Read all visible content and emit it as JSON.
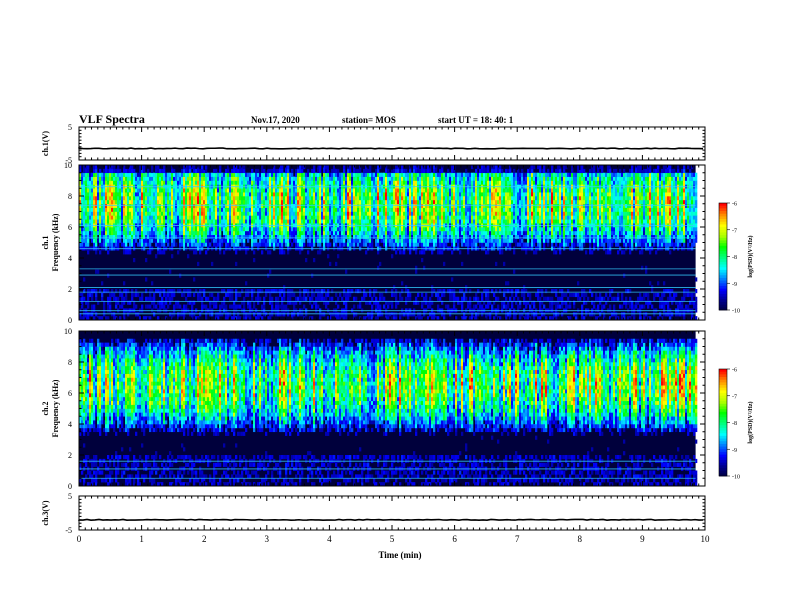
{
  "header": {
    "title": "VLF Spectra",
    "date": "Nov.17, 2020",
    "station": "station= MOS",
    "start": "start  UT =   18: 40: 1"
  },
  "chart_data": [
    {
      "type": "line",
      "name": "ch1-waveform",
      "ylabel": "ch.1(V)",
      "ylim": [
        -5,
        5
      ],
      "yticks": [
        5,
        -5
      ],
      "xlim": [
        0,
        10
      ],
      "series": [
        {
          "values_constant": -1.5
        }
      ]
    },
    {
      "type": "heatmap",
      "name": "ch1-spectrogram",
      "ylabel": "ch.1\nFrequency (kHz)",
      "ylim": [
        0,
        10
      ],
      "yticks": [
        0,
        2,
        4,
        6,
        8,
        10
      ],
      "xlim": [
        0,
        10
      ],
      "data_end_min": 9.85,
      "intense_band_khz": [
        6,
        9
      ],
      "colorbar": {
        "label": "log(PSD)(V²/Hz)",
        "range": [
          -10,
          -6
        ],
        "ticks": [
          -6,
          -7,
          -8,
          -9,
          -10
        ]
      }
    },
    {
      "type": "heatmap",
      "name": "ch2-spectrogram",
      "ylabel": "ch.2\nFrequency (kHz)",
      "ylim": [
        0,
        10
      ],
      "yticks": [
        0,
        2,
        4,
        6,
        8,
        10
      ],
      "xlim": [
        0,
        10
      ],
      "data_end_min": 9.85,
      "intense_band_khz": [
        5,
        8
      ],
      "colorbar": {
        "label": "log(PSD)(V²/Hz)",
        "range": [
          -10,
          -6
        ],
        "ticks": [
          -6,
          -7,
          -8,
          -9,
          -10
        ]
      }
    },
    {
      "type": "line",
      "name": "ch3-waveform",
      "ylabel": "ch.3(V)",
      "ylim": [
        -5,
        5
      ],
      "yticks": [
        5,
        -5
      ],
      "xlim": [
        0,
        10
      ],
      "series": [
        {
          "values_constant": -2
        }
      ]
    }
  ],
  "xaxis": {
    "label": "Time (min)",
    "ticks": [
      0,
      1,
      2,
      3,
      4,
      5,
      6,
      7,
      8,
      9,
      10
    ]
  },
  "colors": {
    "dark": "#00003c",
    "blue": "#0000ff",
    "cyan": "#00ffff",
    "green": "#00ff00",
    "yellow": "#ffff00",
    "red": "#ff0000"
  }
}
